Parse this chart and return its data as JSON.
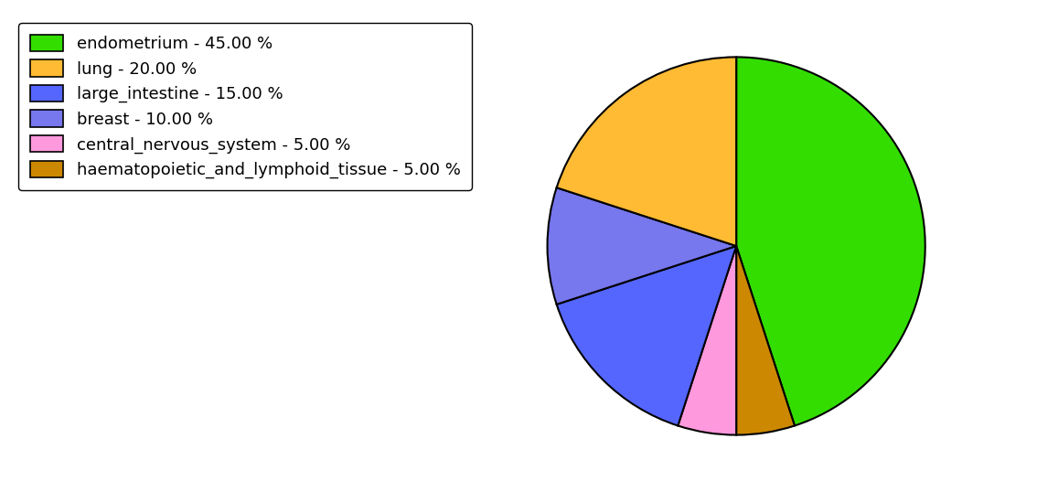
{
  "labels": [
    "endometrium - 45.00 %",
    "lung - 20.00 %",
    "large_intestine - 15.00 %",
    "breast - 10.00 %",
    "central_nervous_system - 5.00 %",
    "haematopoietic_and_lymphoid_tissue - 5.00 %"
  ],
  "values": [
    45,
    20,
    15,
    10,
    5,
    5
  ],
  "colors": [
    "#33dd00",
    "#ffbb33",
    "#5566ff",
    "#7777ee",
    "#ff99dd",
    "#cc8800"
  ],
  "startangle": 90,
  "legend_fontsize": 13,
  "figure_width": 11.34,
  "figure_height": 5.38,
  "background_color": "#ffffff",
  "pie_order": [
    0,
    5,
    4,
    2,
    3,
    1
  ]
}
